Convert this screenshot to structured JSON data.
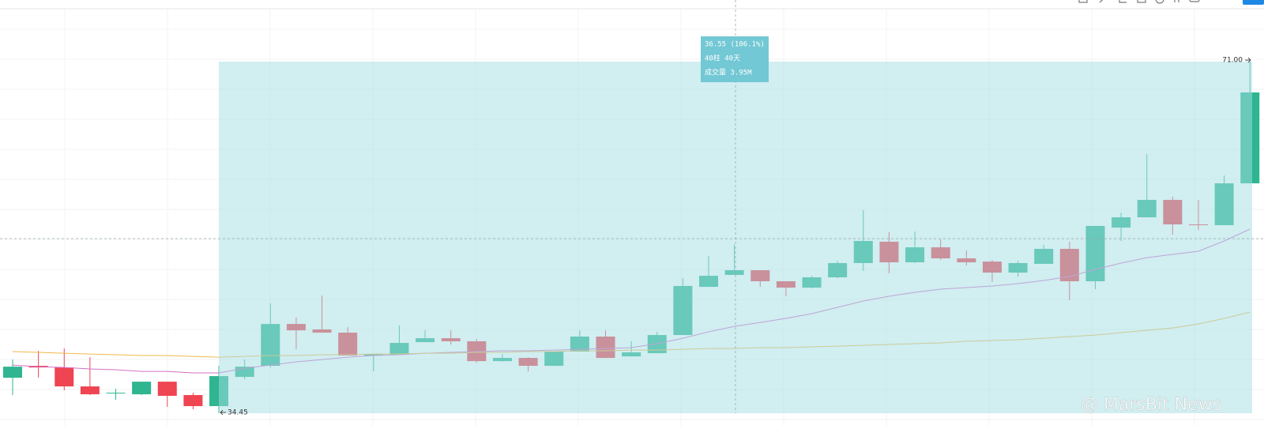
{
  "chart_data": {
    "type": "candlestick",
    "up_color": "#2fb590",
    "down_color": "#ef4452",
    "open": [
      38.14,
      39.38,
      39.21,
      37.24,
      36.5,
      36.42,
      37.73,
      36.34,
      35.19,
      38.23,
      39.38,
      43.73,
      43.16,
      42.83,
      40.45,
      40.53,
      41.84,
      42.25,
      41.93,
      39.87,
      40.2,
      39.38,
      40.86,
      42.42,
      40.36,
      40.69,
      42.58,
      47.59,
      48.83,
      49.32,
      48.17,
      47.51,
      48.58,
      50.06,
      52.28,
      50.14,
      51.7,
      50.55,
      50.22,
      49.07,
      49.98,
      51.54,
      48.17,
      53.75,
      54.82,
      56.63,
      54.08,
      54.0,
      58.35
    ],
    "high": [
      40.03,
      40.94,
      41.18,
      40.28,
      37.0,
      37.73,
      37.73,
      36.58,
      39.38,
      40.03,
      45.87,
      44.39,
      46.69,
      43.4,
      40.61,
      43.57,
      43.07,
      43.07,
      42.17,
      40.61,
      40.28,
      40.86,
      43.07,
      43.07,
      41.93,
      42.91,
      48.5,
      50.8,
      51.95,
      49.32,
      48.17,
      48.74,
      50.3,
      55.56,
      53.26,
      53.34,
      52.52,
      51.37,
      50.39,
      50.3,
      51.95,
      52.28,
      53.92,
      55.31,
      61.39,
      56.96,
      56.63,
      59.17,
      71.0
    ],
    "low": [
      36.34,
      38.14,
      36.83,
      36.34,
      35.85,
      36.34,
      35.11,
      34.86,
      34.45,
      37.98,
      39.21,
      41.1,
      42.83,
      40.45,
      38.8,
      40.53,
      41.84,
      41.6,
      39.71,
      39.79,
      38.8,
      39.38,
      40.86,
      40.2,
      40.36,
      40.69,
      42.58,
      47.59,
      48.83,
      47.59,
      46.61,
      47.43,
      48.5,
      49.24,
      48.99,
      50.06,
      50.39,
      49.81,
      48.09,
      48.66,
      49.98,
      46.2,
      47.35,
      52.36,
      54.82,
      53.01,
      53.51,
      54.0,
      58.35
    ],
    "close": [
      39.29,
      39.21,
      37.24,
      36.42,
      36.58,
      37.73,
      36.26,
      35.19,
      38.31,
      39.29,
      43.73,
      43.07,
      42.83,
      40.45,
      40.61,
      41.76,
      42.25,
      41.93,
      39.87,
      40.2,
      39.38,
      40.86,
      42.42,
      40.2,
      40.78,
      42.58,
      47.68,
      48.74,
      49.32,
      48.17,
      47.51,
      48.58,
      50.06,
      52.36,
      50.14,
      51.7,
      50.55,
      50.14,
      49.07,
      50.06,
      51.54,
      48.17,
      53.92,
      54.82,
      56.63,
      54.08,
      54.0,
      58.35,
      67.8
    ],
    "ma_lines": [
      {
        "color": "#d46fc6",
        "values": [
          39.46,
          39.29,
          39.21,
          39.05,
          38.97,
          38.8,
          38.8,
          38.64,
          38.64,
          39.13,
          39.46,
          39.79,
          40.03,
          40.28,
          40.45,
          40.53,
          40.69,
          40.78,
          40.86,
          40.94,
          40.94,
          41.02,
          41.1,
          41.18,
          41.27,
          41.68,
          42.25,
          42.91,
          43.48,
          43.89,
          44.31,
          44.8,
          45.46,
          46.12,
          46.61,
          47.02,
          47.35,
          47.51,
          47.68,
          47.92,
          48.25,
          48.66,
          49.4,
          50.06,
          50.63,
          50.96,
          51.29,
          52.36,
          53.59
        ]
      },
      {
        "color": "#f2b84b",
        "values": [
          40.86,
          40.78,
          40.69,
          40.61,
          40.53,
          40.45,
          40.45,
          40.36,
          40.28,
          40.36,
          40.45,
          40.45,
          40.53,
          40.53,
          40.61,
          40.61,
          40.69,
          40.69,
          40.78,
          40.78,
          40.86,
          40.86,
          40.94,
          40.94,
          41.02,
          41.02,
          41.1,
          41.18,
          41.18,
          41.27,
          41.27,
          41.35,
          41.43,
          41.51,
          41.6,
          41.68,
          41.76,
          41.93,
          42.01,
          42.09,
          42.25,
          42.42,
          42.58,
          42.83,
          43.07,
          43.32,
          43.73,
          44.31,
          44.96
        ]
      }
    ],
    "ylim": [
      33.14,
      77.41
    ],
    "measure": {
      "start_index": 8,
      "high": {
        "value": 71.0,
        "label": "71.00"
      },
      "low": 34.45,
      "change_label": "36.55 (106.1%)",
      "bars_label": "40柱 40天",
      "volume_label": "成交量 3.95M"
    },
    "watermark": "@ MarsBit News"
  }
}
